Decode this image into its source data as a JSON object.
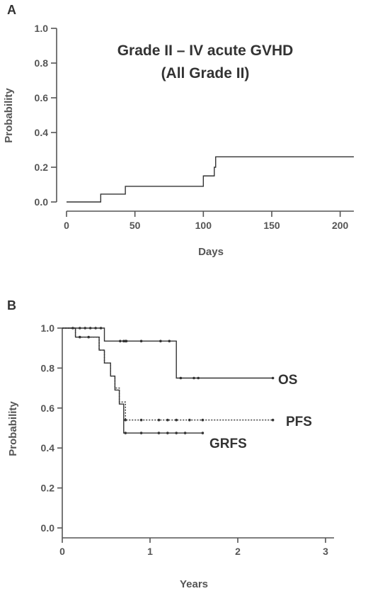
{
  "chart_data": [
    {
      "panel": "A",
      "type": "line",
      "step": true,
      "title": "Grade II – IV acute GVHD",
      "subtitle": "(All Grade II)",
      "xlabel": "Days",
      "ylabel": "Probability",
      "xlim": [
        0,
        210
      ],
      "ylim": [
        0,
        1
      ],
      "xticks": [
        0,
        50,
        100,
        150,
        200
      ],
      "yticks": [
        "0.0",
        "0.2",
        "0.4",
        "0.6",
        "0.8",
        "1.0"
      ],
      "series": [
        {
          "style": "solid",
          "x": [
            0,
            25,
            43,
            100,
            108,
            109,
            210
          ],
          "y": [
            0,
            0.045,
            0.09,
            0.15,
            0.2,
            0.26,
            0.26
          ]
        }
      ]
    },
    {
      "panel": "B",
      "type": "line",
      "step": true,
      "xlabel": "Years",
      "ylabel": "Probability",
      "xlim": [
        0,
        3
      ],
      "ylim": [
        0,
        1
      ],
      "xticks": [
        0,
        1,
        2,
        3
      ],
      "yticks": [
        "0.0",
        "0.2",
        "0.4",
        "0.6",
        "0.8",
        "1.0"
      ],
      "series": [
        {
          "name": "OS",
          "style": "solid",
          "x": [
            0,
            0.48,
            1.3,
            2.4
          ],
          "y": [
            1.0,
            0.935,
            0.75,
            0.75
          ],
          "censor_x": [
            0.12,
            0.2,
            0.26,
            0.32,
            0.38,
            0.44,
            0.66,
            0.72,
            0.7,
            0.73,
            0.9,
            1.12,
            1.22,
            1.35,
            1.5,
            1.55,
            2.4
          ]
        },
        {
          "name": "PFS",
          "style": "dotted",
          "x": [
            0,
            0.15,
            0.42,
            0.48,
            0.55,
            0.6,
            0.65,
            0.72,
            2.4
          ],
          "y": [
            1.0,
            0.955,
            0.89,
            0.825,
            0.76,
            0.7,
            0.63,
            0.54,
            0.54
          ],
          "censor_x": [
            0.2,
            0.3,
            0.72,
            0.9,
            1.1,
            1.2,
            1.3,
            1.45,
            1.6,
            2.4
          ]
        },
        {
          "name": "GRFS",
          "style": "solid",
          "x": [
            0,
            0.15,
            0.42,
            0.48,
            0.55,
            0.6,
            0.65,
            0.7,
            1.6
          ],
          "y": [
            1.0,
            0.955,
            0.89,
            0.825,
            0.76,
            0.69,
            0.62,
            0.475,
            0.475
          ],
          "censor_x": [
            0.72,
            0.9,
            1.1,
            1.2,
            1.3,
            1.4,
            1.6
          ]
        }
      ]
    }
  ]
}
